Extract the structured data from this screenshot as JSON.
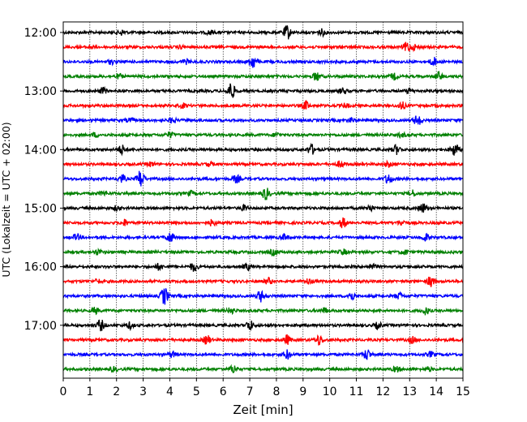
{
  "chart_data": {
    "type": "line",
    "title": "",
    "xlabel": "Zeit  [min]",
    "ylabel": "UTC (Lokalzeit = UTC + 02:00)",
    "xlim": [
      0,
      15
    ],
    "x_ticks": [
      "0",
      "1",
      "2",
      "3",
      "4",
      "5",
      "6",
      "7",
      "8",
      "9",
      "10",
      "11",
      "12",
      "13",
      "14",
      "15"
    ],
    "y_tick_labels": [
      "12:00",
      "13:00",
      "14:00",
      "15:00",
      "16:00",
      "17:00"
    ],
    "y_tick_trace_index": [
      0,
      4,
      8,
      12,
      16,
      20
    ],
    "grid_x": true,
    "trace_interval_minutes": 15,
    "color_cycle": [
      "#000000",
      "#ff0000",
      "#0000ff",
      "#008000"
    ],
    "series": [
      {
        "name": "12:00",
        "color": "#000000",
        "events": [
          [
            2.2,
            0.25
          ],
          [
            5.5,
            0.2
          ],
          [
            8.4,
            0.7
          ],
          [
            9.7,
            0.3
          ]
        ]
      },
      {
        "name": "12:15",
        "color": "#ff0000",
        "events": [
          [
            1.0,
            0.15
          ],
          [
            4.4,
            0.15
          ],
          [
            12.9,
            0.5
          ],
          [
            13.2,
            0.25
          ]
        ]
      },
      {
        "name": "12:30",
        "color": "#0000ff",
        "events": [
          [
            1.8,
            0.2
          ],
          [
            4.6,
            0.2
          ],
          [
            7.1,
            0.7
          ],
          [
            13.9,
            0.4
          ]
        ]
      },
      {
        "name": "12:45",
        "color": "#008000",
        "events": [
          [
            2.1,
            0.2
          ],
          [
            9.5,
            0.45
          ],
          [
            12.4,
            0.3
          ],
          [
            14.1,
            0.4
          ]
        ]
      },
      {
        "name": "13:00",
        "color": "#000000",
        "events": [
          [
            1.5,
            0.3
          ],
          [
            6.3,
            0.9
          ],
          [
            10.5,
            0.3
          ],
          [
            13.0,
            0.25
          ]
        ]
      },
      {
        "name": "13:15",
        "color": "#ff0000",
        "events": [
          [
            4.5,
            0.2
          ],
          [
            9.1,
            0.4
          ],
          [
            10.6,
            0.2
          ],
          [
            12.7,
            0.35
          ]
        ]
      },
      {
        "name": "13:30",
        "color": "#0000ff",
        "events": [
          [
            2.5,
            0.2
          ],
          [
            4.1,
            0.25
          ],
          [
            10.8,
            0.2
          ],
          [
            13.3,
            0.55
          ]
        ]
      },
      {
        "name": "13:45",
        "color": "#008000",
        "events": [
          [
            1.2,
            0.2
          ],
          [
            4.0,
            0.25
          ],
          [
            8.0,
            0.2
          ],
          [
            12.7,
            0.2
          ]
        ]
      },
      {
        "name": "14:00",
        "color": "#000000",
        "events": [
          [
            2.2,
            0.45
          ],
          [
            9.3,
            0.5
          ],
          [
            12.5,
            0.45
          ],
          [
            14.7,
            0.65
          ]
        ]
      },
      {
        "name": "14:15",
        "color": "#ff0000",
        "events": [
          [
            3.3,
            0.2
          ],
          [
            5.5,
            0.2
          ],
          [
            10.4,
            0.3
          ],
          [
            12.2,
            0.25
          ]
        ]
      },
      {
        "name": "14:30",
        "color": "#0000ff",
        "events": [
          [
            2.2,
            0.4
          ],
          [
            2.9,
            0.9
          ],
          [
            6.5,
            0.35
          ],
          [
            12.2,
            0.5
          ]
        ]
      },
      {
        "name": "14:45",
        "color": "#008000",
        "events": [
          [
            1.5,
            0.2
          ],
          [
            4.8,
            0.2
          ],
          [
            7.6,
            0.6
          ],
          [
            13.1,
            0.3
          ]
        ]
      },
      {
        "name": "15:00",
        "color": "#000000",
        "events": [
          [
            2.0,
            0.2
          ],
          [
            6.8,
            0.25
          ],
          [
            11.5,
            0.3
          ],
          [
            13.5,
            0.45
          ]
        ]
      },
      {
        "name": "15:15",
        "color": "#ff0000",
        "events": [
          [
            2.3,
            0.3
          ],
          [
            5.6,
            0.3
          ],
          [
            10.5,
            0.5
          ],
          [
            12.7,
            0.25
          ]
        ]
      },
      {
        "name": "15:30",
        "color": "#0000ff",
        "events": [
          [
            0.5,
            0.3
          ],
          [
            4.0,
            0.55
          ],
          [
            8.3,
            0.3
          ],
          [
            13.6,
            0.35
          ]
        ]
      },
      {
        "name": "15:45",
        "color": "#008000",
        "events": [
          [
            1.3,
            0.25
          ],
          [
            7.9,
            0.3
          ],
          [
            10.5,
            0.25
          ],
          [
            12.8,
            0.25
          ]
        ]
      },
      {
        "name": "16:00",
        "color": "#000000",
        "events": [
          [
            3.6,
            0.3
          ],
          [
            4.9,
            0.45
          ],
          [
            6.9,
            0.3
          ],
          [
            11.6,
            0.25
          ]
        ]
      },
      {
        "name": "16:15",
        "color": "#ff0000",
        "events": [
          [
            1.3,
            0.2
          ],
          [
            7.7,
            0.3
          ],
          [
            9.2,
            0.25
          ],
          [
            13.8,
            0.55
          ]
        ]
      },
      {
        "name": "16:30",
        "color": "#0000ff",
        "events": [
          [
            3.8,
            0.9
          ],
          [
            7.4,
            0.55
          ],
          [
            10.8,
            0.45
          ],
          [
            12.6,
            0.3
          ]
        ]
      },
      {
        "name": "16:45",
        "color": "#008000",
        "events": [
          [
            1.2,
            0.3
          ],
          [
            6.3,
            0.3
          ],
          [
            9.8,
            0.25
          ],
          [
            13.6,
            0.35
          ]
        ]
      },
      {
        "name": "17:00",
        "color": "#000000",
        "events": [
          [
            1.4,
            0.55
          ],
          [
            2.5,
            0.3
          ],
          [
            7.0,
            0.5
          ],
          [
            11.8,
            0.3
          ]
        ]
      },
      {
        "name": "17:15",
        "color": "#ff0000",
        "events": [
          [
            5.4,
            0.45
          ],
          [
            8.4,
            0.45
          ],
          [
            9.6,
            0.5
          ],
          [
            13.1,
            0.3
          ]
        ]
      },
      {
        "name": "17:30",
        "color": "#0000ff",
        "events": [
          [
            4.1,
            0.3
          ],
          [
            8.4,
            0.45
          ],
          [
            11.4,
            0.55
          ],
          [
            13.8,
            0.25
          ]
        ]
      },
      {
        "name": "17:45",
        "color": "#008000",
        "events": [
          [
            1.9,
            0.2
          ],
          [
            6.4,
            0.4
          ],
          [
            12.5,
            0.25
          ],
          [
            13.7,
            0.2
          ]
        ]
      }
    ]
  }
}
